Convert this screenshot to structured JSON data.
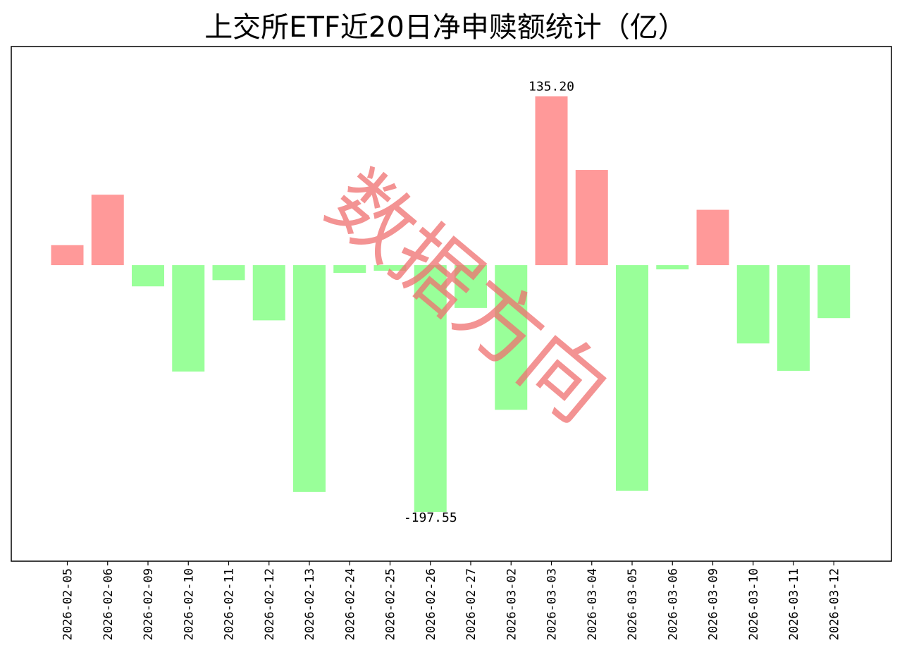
{
  "chart_data": {
    "type": "bar",
    "title": "上交所ETF近20日净申赎额统计（亿）",
    "xlabel": "",
    "ylabel": "",
    "categories": [
      "2026-02-05",
      "2026-02-06",
      "2026-02-09",
      "2026-02-10",
      "2026-02-11",
      "2026-02-12",
      "2026-02-13",
      "2026-02-24",
      "2026-02-25",
      "2026-02-26",
      "2026-02-27",
      "2026-03-02",
      "2026-03-03",
      "2026-03-04",
      "2026-03-05",
      "2026-03-06",
      "2026-03-09",
      "2026-03-10",
      "2026-03-11",
      "2026-03-12"
    ],
    "values": [
      16.0,
      56.4,
      -17.0,
      -85.2,
      -12.0,
      -44.2,
      -181.6,
      -6.2,
      -4.5,
      -197.55,
      -34.3,
      -115.8,
      135.2,
      76.2,
      -180.6,
      -3.4,
      44.3,
      -62.7,
      -84.6,
      -42.4
    ],
    "ylim": [
      -237,
      175
    ],
    "annotations": [
      {
        "category": "2026-03-03",
        "text": "135.20"
      },
      {
        "category": "2026-02-26",
        "text": "-197.55"
      }
    ],
    "colors": {
      "positive": "#ff9999",
      "negative": "#99ff99"
    },
    "grid": false,
    "legend": "none",
    "watermark": "数据方向"
  }
}
